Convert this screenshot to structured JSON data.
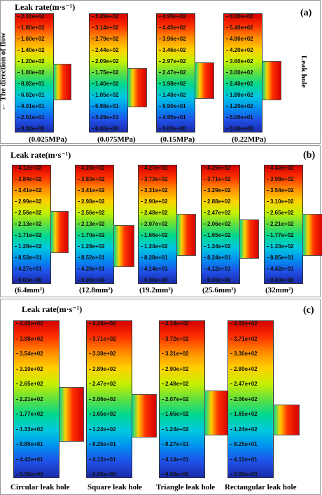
{
  "panels": [
    {
      "id": "a",
      "title": "Leak rate(m·s⁻¹)",
      "label": "(a)",
      "side_left": "The direction of flow",
      "side_right": "Leak hole",
      "items": [
        {
          "caption": "(0.025MPa)",
          "ticks": [
            "2.01e+02",
            "1.80e+02",
            "1.60e+02",
            "1.40e+02",
            "1.20e+02",
            "1.00e+02",
            "8.02e+01",
            "6.02e+01",
            "4.01e+01",
            "2.01e+01",
            "0.00e+00"
          ]
        },
        {
          "caption": "(0.075MPa)",
          "ticks": [
            "3.49e+02",
            "3.14e+02",
            "2.79e+02",
            "2.44e+02",
            "2.09e+02",
            "1.75e+02",
            "1.40e+02",
            "1.05e+02",
            "6.98e+01",
            "3.49e+01",
            "0.00e+00"
          ]
        },
        {
          "caption": "(0.15MPa)",
          "ticks": [
            "4.95e+02",
            "4.45e+02",
            "3.96e+02",
            "3.46e+02",
            "2.97e+02",
            "2.47e+02",
            "1.98e+02",
            "1.48e+02",
            "9.90e+01",
            "4.95e+01",
            "0.00e+00"
          ]
        },
        {
          "caption": "(0.22MPa)",
          "ticks": [
            "6.00e+02",
            "5.40e+02",
            "4.80e+02",
            "4.20e+02",
            "3.60e+02",
            "3.00e+02",
            "2.40e+02",
            "1.80e+02",
            "1.20e+02",
            "6.00e+01",
            "0.00e+00"
          ]
        }
      ]
    },
    {
      "id": "b",
      "title": "Leak rate(m·s⁻¹)",
      "label": "(b)",
      "items": [
        {
          "caption": "(6.4mm²)",
          "ticks": [
            "4.12e+02",
            "3.84e+02",
            "3.41e+02",
            "2.99e+02",
            "2.56e+02",
            "2.13e+02",
            "1.71e+02",
            "1.28e+02",
            "8.53e+01",
            "4.27e+01",
            "0.00e+00"
          ]
        },
        {
          "caption": "(12.8mm²)",
          "ticks": [
            "4.20e+02",
            "3.83e+02",
            "3.41e+02",
            "2.98e+02",
            "2.56e+02",
            "2.13e+02",
            "1.70e+02",
            "1.28e+02",
            "8.52e+01",
            "4.26e+01",
            "0.00e+00"
          ]
        },
        {
          "caption": "(19.2mm²)",
          "ticks": [
            "4.27e+02",
            "3.73e+02",
            "3.31e+02",
            "2.90e+02",
            "2.48e+02",
            "2.07e+02",
            "1.66e+02",
            "1.24e+02",
            "8.28e+01",
            "4.14e+01",
            "0.00e+00"
          ]
        },
        {
          "caption": "(25.6mm²)",
          "ticks": [
            "4.25e+02",
            "3.71e+02",
            "3.29e+02",
            "2.88e+02",
            "2.47e+02",
            "2.06e+02",
            "1.65e+02",
            "1.24e+02",
            "8.24e+01",
            "4.12e+01",
            "0.00e+00"
          ]
        },
        {
          "caption": "(32mm²)",
          "ticks": [
            "4.42e+02",
            "3.98e+02",
            "3.54e+02",
            "3.10e+02",
            "2.65e+02",
            "2.21e+02",
            "1.77e+02",
            "1.33e+02",
            "8.85e+01",
            "4.42e+01",
            "0.00e+00"
          ]
        }
      ]
    },
    {
      "id": "c",
      "title": "Leak rate(m·s⁻¹)",
      "label": "(c)",
      "items": [
        {
          "caption": "Circular leak hole",
          "ticks": [
            "4.42e+02",
            "3.98e+02",
            "3.54e+02",
            "3.10e+02",
            "2.65e+02",
            "2.21e+02",
            "1.77e+02",
            "1.33e+02",
            "8.85e+01",
            "4.42e+01",
            "0.00e+00"
          ]
        },
        {
          "caption": "Square leak hole",
          "ticks": [
            "4.24e+02",
            "3.71e+02",
            "3.30e+02",
            "2.89e+02",
            "2.47e+02",
            "2.06e+02",
            "1.65e+02",
            "1.24e+02",
            "8.25e+01",
            "4.12e+01",
            "0.00e+00"
          ]
        },
        {
          "caption": "Triangle leak hole",
          "ticks": [
            "4.14e+02",
            "3.72e+02",
            "3.31e+02",
            "2.90e+02",
            "2.48e+02",
            "2.07e+02",
            "1.65e+02",
            "1.24e+02",
            "8.27e+01",
            "4.14e+01",
            "0.00e+00"
          ]
        },
        {
          "caption": "Rectangular leak hole",
          "ticks": [
            "4.02e+02",
            "3.71e+02",
            "3.30e+02",
            "2.89e+02",
            "2.47e+02",
            "2.06e+02",
            "1.65e+02",
            "1.24e+02",
            "8.25e+01",
            "4.12e+01",
            "0.00e+00"
          ]
        }
      ]
    }
  ],
  "colormap": [
    "#d40000",
    "#ff3000",
    "#ff8c00",
    "#ffd000",
    "#c8f000",
    "#60e040",
    "#00d890",
    "#00c8e0",
    "#0090f0",
    "#2050e8",
    "#1a2aa8"
  ]
}
